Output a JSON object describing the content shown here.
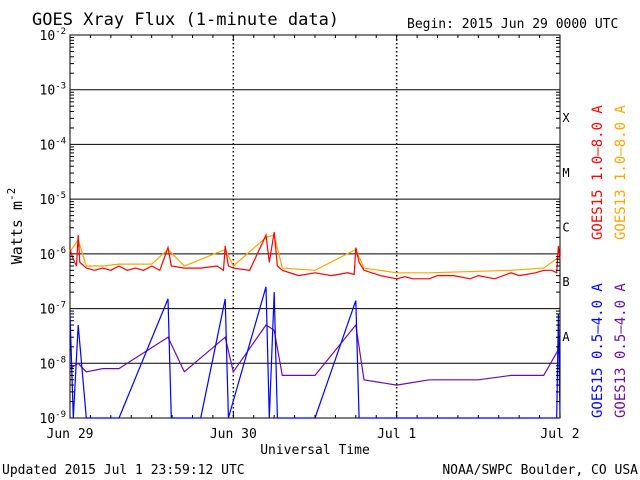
{
  "chart_data": {
    "type": "line",
    "title": "GOES Xray Flux (1-minute data)",
    "begin_label": "Begin:  2015 Jun 29 0000 UTC",
    "xlabel": "Universal Time",
    "ylabel_base": "Watts m",
    "ylabel_exp": "-2",
    "x_ticks": [
      "Jun 29",
      "Jun 30",
      "Jul 1",
      "Jul 2"
    ],
    "xlim_days": [
      0,
      3
    ],
    "y_scale": "log",
    "ylim": [
      1e-09,
      0.01
    ],
    "y_ticks": [
      {
        "base": "10",
        "exp": "-9",
        "value": 1e-09
      },
      {
        "base": "10",
        "exp": "-8",
        "value": 1e-08
      },
      {
        "base": "10",
        "exp": "-7",
        "value": 1e-07
      },
      {
        "base": "10",
        "exp": "-6",
        "value": 1e-06
      },
      {
        "base": "10",
        "exp": "-5",
        "value": 1e-05
      },
      {
        "base": "10",
        "exp": "-4",
        "value": 0.0001
      },
      {
        "base": "10",
        "exp": "-3",
        "value": 0.001
      },
      {
        "base": "10",
        "exp": "-2",
        "value": 0.01
      }
    ],
    "flare_classes": [
      {
        "label": "A",
        "value": 1e-08
      },
      {
        "label": "B",
        "value": 1e-07
      },
      {
        "label": "C",
        "value": 1e-06
      },
      {
        "label": "M",
        "value": 1e-05
      },
      {
        "label": "X",
        "value": 0.0001
      }
    ],
    "legend": {
      "long": [
        {
          "label": "GOES15 1.0–8.0 A",
          "color": "#ff0000"
        },
        {
          "label": "GOES13 1.0–8.0 A",
          "color": "#ffa500"
        }
      ],
      "short": [
        {
          "label": "GOES15 0.5–4.0 A",
          "color": "#0000ff"
        },
        {
          "label": "GOES13 0.5–4.0 A",
          "color": "#6a0dad"
        }
      ]
    },
    "series": [
      {
        "name": "GOES15 1.0–8.0 A",
        "color": "#ff0000",
        "points": [
          [
            0,
            1.2e-06
          ],
          [
            0.02,
            8e-07
          ],
          [
            0.04,
            6e-07
          ],
          [
            0.05,
            2.2e-06
          ],
          [
            0.06,
            7e-07
          ],
          [
            0.1,
            5.5e-07
          ],
          [
            0.15,
            5e-07
          ],
          [
            0.2,
            5.5e-07
          ],
          [
            0.25,
            5e-07
          ],
          [
            0.3,
            6e-07
          ],
          [
            0.35,
            5e-07
          ],
          [
            0.4,
            5.5e-07
          ],
          [
            0.45,
            5e-07
          ],
          [
            0.5,
            6e-07
          ],
          [
            0.55,
            5e-07
          ],
          [
            0.6,
            1.3e-06
          ],
          [
            0.62,
            6e-07
          ],
          [
            0.7,
            5.5e-07
          ],
          [
            0.8,
            5.5e-07
          ],
          [
            0.9,
            6e-07
          ],
          [
            0.94,
            5e-07
          ],
          [
            0.95,
            1.4e-06
          ],
          [
            0.97,
            6e-07
          ],
          [
            1.0,
            5.5e-07
          ],
          [
            1.1,
            5e-07
          ],
          [
            1.2,
            2.2e-06
          ],
          [
            1.22,
            7e-07
          ],
          [
            1.25,
            2.5e-06
          ],
          [
            1.27,
            6e-07
          ],
          [
            1.3,
            5e-07
          ],
          [
            1.4,
            4e-07
          ],
          [
            1.5,
            4.5e-07
          ],
          [
            1.6,
            4e-07
          ],
          [
            1.7,
            4.5e-07
          ],
          [
            1.74,
            4.2e-07
          ],
          [
            1.75,
            1.3e-06
          ],
          [
            1.77,
            7e-07
          ],
          [
            1.8,
            5e-07
          ],
          [
            1.9,
            4e-07
          ],
          [
            2.0,
            3.5e-07
          ],
          [
            2.05,
            3.8e-07
          ],
          [
            2.1,
            3.5e-07
          ],
          [
            2.15,
            3.5e-07
          ],
          [
            2.2,
            3.5e-07
          ],
          [
            2.25,
            4e-07
          ],
          [
            2.35,
            4e-07
          ],
          [
            2.45,
            3.5e-07
          ],
          [
            2.5,
            4e-07
          ],
          [
            2.6,
            3.5e-07
          ],
          [
            2.7,
            4.5e-07
          ],
          [
            2.75,
            4e-07
          ],
          [
            2.85,
            4.5e-07
          ],
          [
            2.9,
            5e-07
          ],
          [
            2.95,
            5e-07
          ],
          [
            2.98,
            4.5e-07
          ],
          [
            2.99,
            1.4e-06
          ],
          [
            3.0,
            8e-07
          ]
        ]
      },
      {
        "name": "GOES13 1.0–8.0 A",
        "color": "#ffa500",
        "points": [
          [
            0,
            1.1e-06
          ],
          [
            0.05,
            1.8e-06
          ],
          [
            0.1,
            6e-07
          ],
          [
            0.2,
            6e-07
          ],
          [
            0.3,
            6.5e-07
          ],
          [
            0.5,
            6.5e-07
          ],
          [
            0.6,
            1.2e-06
          ],
          [
            0.7,
            6e-07
          ],
          [
            0.95,
            1.2e-06
          ],
          [
            1.0,
            6e-07
          ],
          [
            1.2,
            2e-06
          ],
          [
            1.25,
            2.2e-06
          ],
          [
            1.3,
            5.5e-07
          ],
          [
            1.5,
            5e-07
          ],
          [
            1.75,
            1.2e-06
          ],
          [
            1.8,
            5.5e-07
          ],
          [
            2.0,
            4.5e-07
          ],
          [
            2.2,
            4.5e-07
          ],
          [
            2.5,
            4.8e-07
          ],
          [
            2.7,
            5e-07
          ],
          [
            2.9,
            5.5e-07
          ],
          [
            3.0,
            9e-07
          ]
        ]
      },
      {
        "name": "GOES15 0.5–4.0 A",
        "color": "#0000ff",
        "points": [
          [
            0,
            8e-08
          ],
          [
            0.02,
            1e-09
          ],
          [
            0.05,
            5e-08
          ],
          [
            0.1,
            1e-09
          ],
          [
            0.3,
            1e-09
          ],
          [
            0.6,
            1.5e-07
          ],
          [
            0.62,
            1e-09
          ],
          [
            0.8,
            1e-09
          ],
          [
            0.95,
            1.5e-07
          ],
          [
            0.97,
            1e-09
          ],
          [
            1.2,
            2.5e-07
          ],
          [
            1.22,
            1e-09
          ],
          [
            1.25,
            2e-07
          ],
          [
            1.27,
            1e-09
          ],
          [
            1.5,
            1e-09
          ],
          [
            1.75,
            1.4e-07
          ],
          [
            1.77,
            1e-09
          ],
          [
            2.0,
            1e-09
          ],
          [
            2.2,
            1e-09
          ],
          [
            2.5,
            1e-09
          ],
          [
            2.9,
            1e-09
          ],
          [
            2.98,
            1e-09
          ],
          [
            2.99,
            8e-08
          ],
          [
            3.0,
            1e-09
          ]
        ]
      },
      {
        "name": "GOES13 0.5–4.0 A",
        "color": "#6a0dad",
        "points": [
          [
            0,
            8e-09
          ],
          [
            0.05,
            1e-08
          ],
          [
            0.1,
            7e-09
          ],
          [
            0.2,
            8e-09
          ],
          [
            0.3,
            8e-09
          ],
          [
            0.6,
            3e-08
          ],
          [
            0.7,
            7e-09
          ],
          [
            0.95,
            3e-08
          ],
          [
            1.0,
            7e-09
          ],
          [
            1.2,
            5e-08
          ],
          [
            1.25,
            4e-08
          ],
          [
            1.3,
            6e-09
          ],
          [
            1.5,
            6e-09
          ],
          [
            1.75,
            5e-08
          ],
          [
            1.8,
            5e-09
          ],
          [
            2.0,
            4e-09
          ],
          [
            2.2,
            5e-09
          ],
          [
            2.5,
            5e-09
          ],
          [
            2.7,
            6e-09
          ],
          [
            2.9,
            6e-09
          ],
          [
            3.0,
            2e-08
          ]
        ]
      }
    ]
  },
  "footer": {
    "updated": "Updated 2015 Jul  1 23:59:12 UTC",
    "source": "NOAA/SWPC Boulder, CO USA"
  }
}
